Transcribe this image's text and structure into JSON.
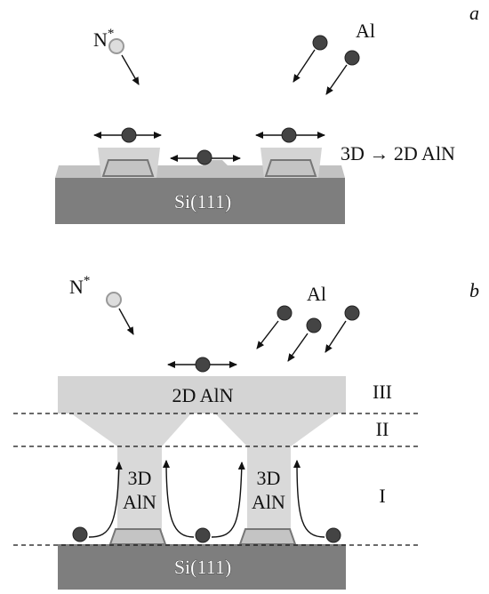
{
  "panels": [
    {
      "label": "a",
      "nitrogen": {
        "base": "N",
        "sup": "*"
      },
      "aluminium": "Al",
      "transition": "3D → 2D AlN",
      "substrate": "Si(111)"
    },
    {
      "label": "b",
      "nitrogen": {
        "base": "N",
        "sup": "*"
      },
      "aluminium": "Al",
      "substrate": "Si(111)",
      "layer": "2D AlN",
      "columns": [
        {
          "line1": "3D",
          "line2": "AlN"
        },
        {
          "line1": "3D",
          "line2": "AlN"
        }
      ],
      "zones": [
        "III",
        "II",
        "I"
      ]
    }
  ]
}
